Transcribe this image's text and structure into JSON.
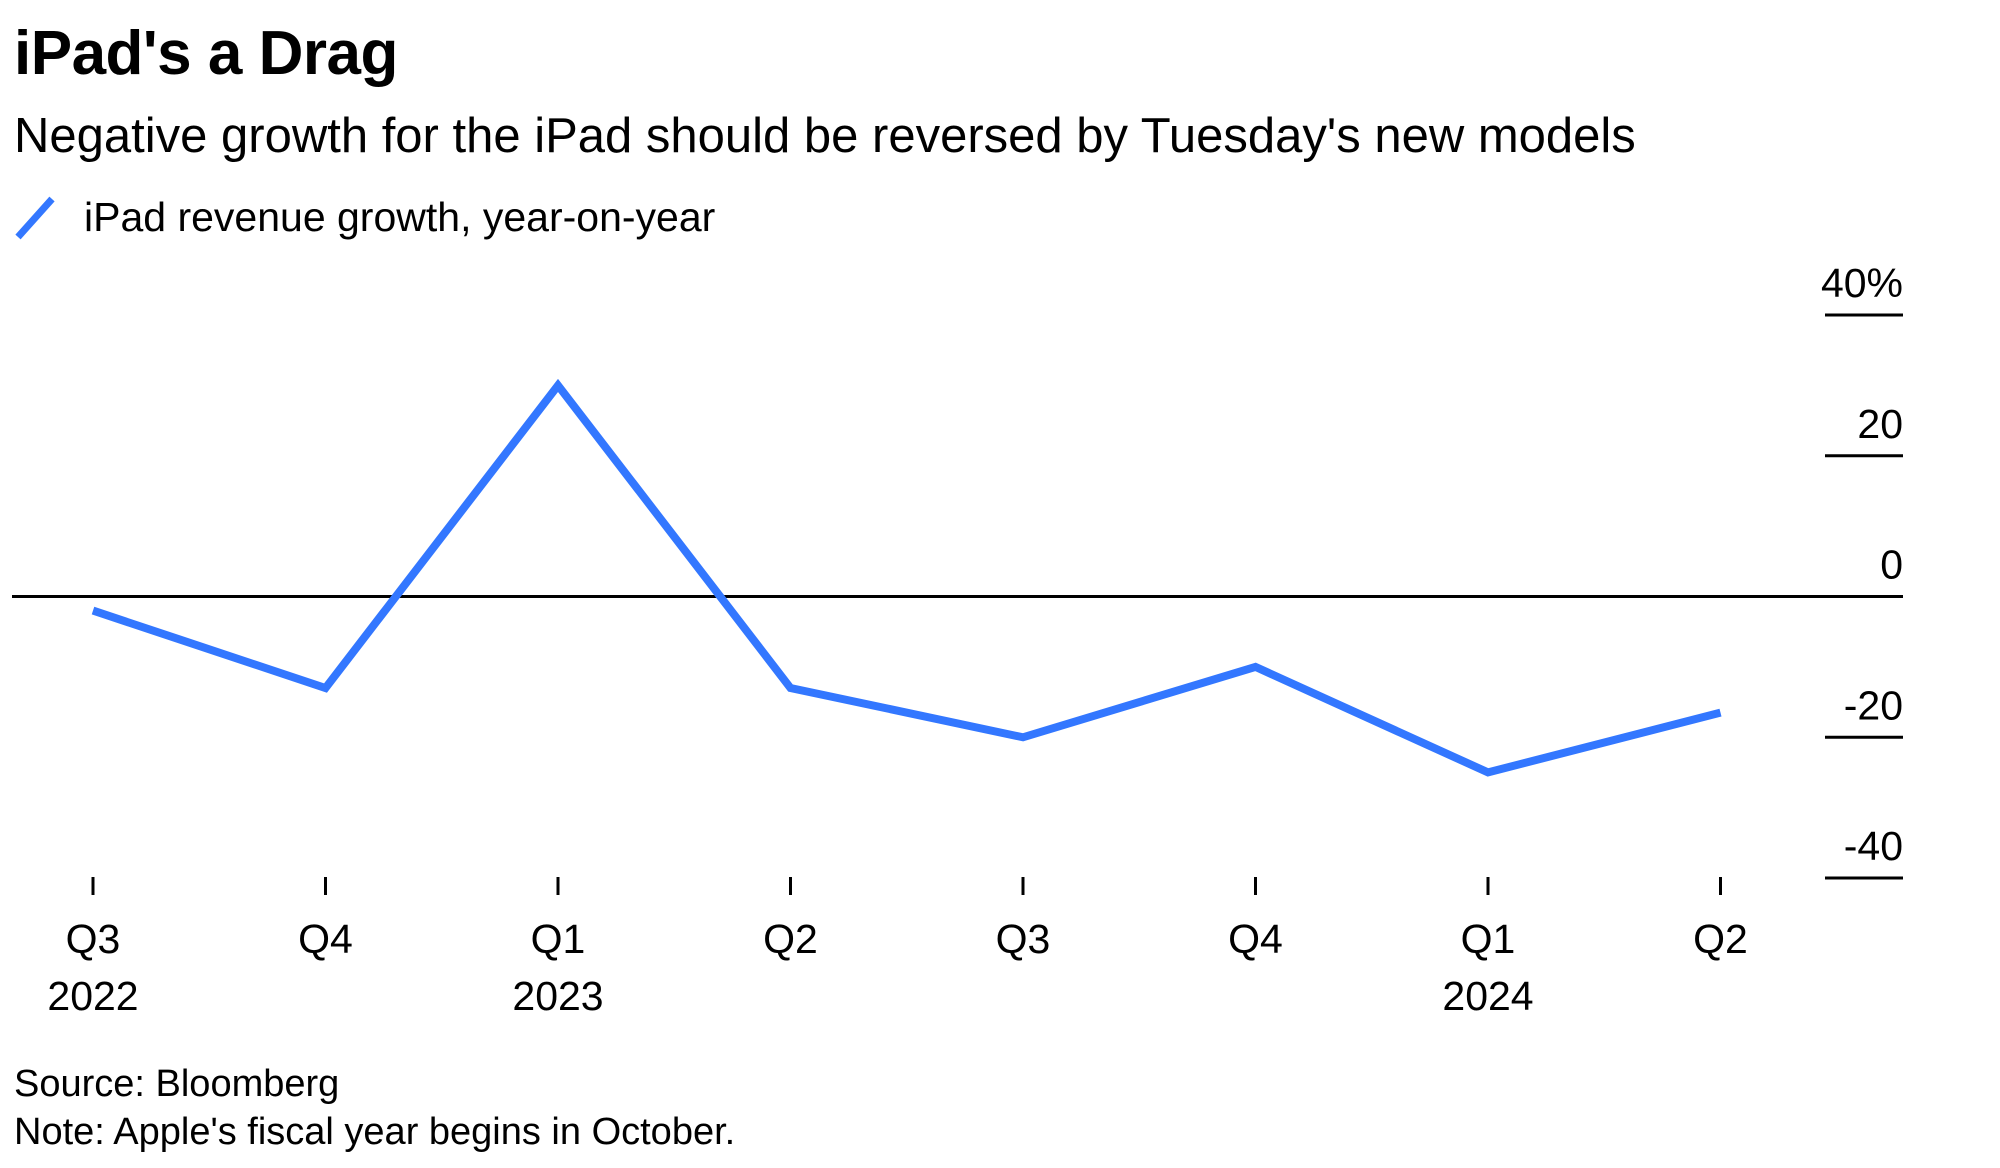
{
  "title": "iPad's a Drag",
  "subtitle": "Negative growth for the iPad should be reversed by Tuesday's new models",
  "source": "Source: Bloomberg",
  "note": "Note: Apple's fiscal year begins in October.",
  "colors": {
    "series": "#3377ff",
    "axis": "#000000",
    "text": "#000000"
  },
  "chart_data": {
    "type": "line",
    "title": "iPad's a Drag",
    "subtitle": "Negative growth for the iPad should be reversed by Tuesday's new models",
    "xlabel": "",
    "ylabel": "",
    "ylim": [
      -40,
      40
    ],
    "y_ticks": [
      {
        "value": 40,
        "label": "40%"
      },
      {
        "value": 20,
        "label": "20"
      },
      {
        "value": 0,
        "label": "0"
      },
      {
        "value": -20,
        "label": "-20"
      },
      {
        "value": -40,
        "label": "-40"
      }
    ],
    "y_axis_side": "right",
    "zero_line": true,
    "grid": false,
    "legend_position": "top-left",
    "categories": [
      "Q3 2022",
      "Q4 2022",
      "Q1 2023",
      "Q2 2023",
      "Q3 2023",
      "Q4 2023",
      "Q1 2024",
      "Q2 2024"
    ],
    "x_tick_labels": [
      {
        "quarter": "Q3",
        "year": "2022"
      },
      {
        "quarter": "Q4",
        "year": ""
      },
      {
        "quarter": "Q1",
        "year": "2023"
      },
      {
        "quarter": "Q2",
        "year": ""
      },
      {
        "quarter": "Q3",
        "year": ""
      },
      {
        "quarter": "Q4",
        "year": ""
      },
      {
        "quarter": "Q1",
        "year": "2024"
      },
      {
        "quarter": "Q2",
        "year": ""
      }
    ],
    "series": [
      {
        "name": "iPad revenue growth, year-on-year",
        "color": "#3377ff",
        "values": [
          -2,
          -13,
          30,
          -13,
          -20,
          -10,
          -25,
          -16.5
        ]
      }
    ]
  }
}
